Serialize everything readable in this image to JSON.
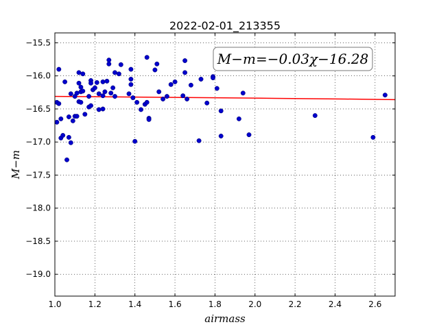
{
  "chart_data": {
    "type": "scatter",
    "title": "2022-02-01_213355",
    "xlabel": "airmass",
    "ylabel": "M−m",
    "annotation": "M−m=−0.03χ−16.28",
    "xlim": [
      1.0,
      2.7
    ],
    "ylim": [
      -15.35,
      -19.33
    ],
    "y_inverted": true,
    "grid": true,
    "x_ticks": [
      "1.0",
      "1.2",
      "1.4",
      "1.6",
      "1.8",
      "2.0",
      "2.2",
      "2.4",
      "2.6"
    ],
    "x_tick_values": [
      1.0,
      1.2,
      1.4,
      1.6,
      1.8,
      2.0,
      2.2,
      2.4,
      2.6
    ],
    "y_ticks": [
      "−15.5",
      "−16.0",
      "−16.5",
      "−17.0",
      "−17.5",
      "−18.0",
      "−18.5",
      "−19.0"
    ],
    "y_tick_values": [
      -15.5,
      -16.0,
      -16.5,
      -17.0,
      -17.5,
      -18.0,
      -18.5,
      -19.0
    ],
    "series": [
      {
        "kind": "points",
        "color": "#0000cc",
        "x": [
          1.01,
          1.01,
          1.02,
          1.02,
          1.03,
          1.03,
          1.04,
          1.05,
          1.06,
          1.07,
          1.07,
          1.08,
          1.08,
          1.09,
          1.1,
          1.1,
          1.11,
          1.11,
          1.12,
          1.12,
          1.12,
          1.13,
          1.13,
          1.13,
          1.14,
          1.14,
          1.15,
          1.17,
          1.17,
          1.18,
          1.18,
          1.18,
          1.19,
          1.2,
          1.21,
          1.22,
          1.22,
          1.24,
          1.24,
          1.24,
          1.25,
          1.26,
          1.27,
          1.27,
          1.28,
          1.29,
          1.3,
          1.3,
          1.32,
          1.33,
          1.37,
          1.38,
          1.38,
          1.38,
          1.39,
          1.4,
          1.41,
          1.43,
          1.45,
          1.46,
          1.46,
          1.47,
          1.47,
          1.5,
          1.51,
          1.52,
          1.54,
          1.56,
          1.58,
          1.6,
          1.64,
          1.65,
          1.65,
          1.66,
          1.68,
          1.72,
          1.73,
          1.76,
          1.79,
          1.79,
          1.81,
          1.83,
          1.83,
          1.92,
          1.94,
          1.97,
          2.3,
          2.59,
          2.65
        ],
        "y": [
          -16.7,
          -16.4,
          -16.42,
          -15.9,
          -16.94,
          -16.65,
          -16.9,
          -16.09,
          -17.27,
          -16.93,
          -16.62,
          -17.01,
          -16.27,
          -16.68,
          -16.61,
          -16.31,
          -16.26,
          -16.61,
          -15.95,
          -16.11,
          -16.39,
          -16.24,
          -16.17,
          -16.4,
          -15.97,
          -16.23,
          -16.58,
          -16.31,
          -16.47,
          -16.07,
          -16.45,
          -16.11,
          -16.21,
          -16.18,
          -16.1,
          -16.27,
          -16.51,
          -16.09,
          -16.3,
          -16.5,
          -16.24,
          -16.08,
          -15.76,
          -15.82,
          -16.26,
          -16.18,
          -16.31,
          -15.95,
          -15.97,
          -15.83,
          -16.27,
          -15.9,
          -16.13,
          -16.05,
          -16.33,
          -16.99,
          -16.4,
          -16.51,
          -16.43,
          -15.72,
          -16.4,
          -16.64,
          -16.66,
          -15.91,
          -15.82,
          -16.24,
          -16.35,
          -16.31,
          -16.13,
          -16.09,
          -16.3,
          -15.95,
          -15.77,
          -16.35,
          -16.14,
          -16.98,
          -16.05,
          -16.41,
          -16.01,
          -16.03,
          -16.19,
          -16.53,
          -16.91,
          -16.65,
          -16.26,
          -16.89,
          -16.6,
          -16.93,
          -16.29
        ]
      },
      {
        "kind": "fit-line",
        "color": "#ff0000",
        "x": [
          1.0,
          1.4,
          1.8,
          2.1,
          2.45,
          2.7
        ],
        "y": [
          -16.31,
          -16.32,
          -16.33,
          -16.34,
          -16.35,
          -16.36
        ]
      }
    ]
  }
}
